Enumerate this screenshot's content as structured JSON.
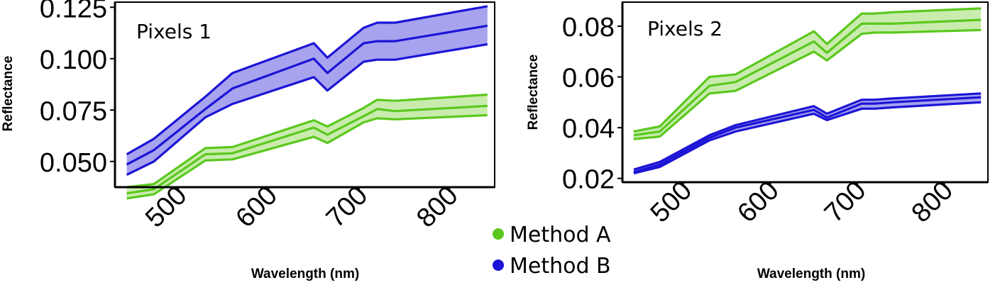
{
  "colors": {
    "method_a_line": "#5bc81e",
    "method_a_fill": "#c9ecae",
    "method_b_line": "#1c14d6",
    "method_b_fill": "#a7a3ee"
  },
  "legend": [
    {
      "label": "Method A",
      "color": "#5bc81e"
    },
    {
      "label": "Method B",
      "color": "#1c14d6"
    }
  ],
  "chart_data": [
    {
      "type": "line",
      "panel_label": "Pixels 1",
      "xlabel": "Wavelength (nm)",
      "ylabel": "Reflectance",
      "xlim": [
        430,
        850
      ],
      "ylim": [
        0.0375,
        0.1275
      ],
      "xticks": [
        500,
        600,
        700,
        800
      ],
      "yticks": [
        0.05,
        0.075,
        0.1,
        0.125
      ],
      "ytick_labels": [
        "0.050",
        "0.075",
        "0.100",
        "0.125"
      ],
      "x": [
        443,
        473,
        530,
        560,
        650,
        665,
        705,
        720,
        740,
        842
      ],
      "series": [
        {
          "name": "Method A",
          "mean": [
            0.0345,
            0.0365,
            0.0535,
            0.054,
            0.0665,
            0.063,
            0.072,
            0.0755,
            0.0745,
            0.077
          ],
          "lower": [
            0.032,
            0.034,
            0.0505,
            0.051,
            0.062,
            0.059,
            0.069,
            0.071,
            0.0705,
            0.0725
          ],
          "upper": [
            0.0375,
            0.039,
            0.0565,
            0.057,
            0.07,
            0.067,
            0.076,
            0.08,
            0.0795,
            0.0825
          ]
        },
        {
          "name": "Method B",
          "mean": [
            0.0485,
            0.0555,
            0.0755,
            0.0855,
            0.1,
            0.093,
            0.1075,
            0.1085,
            0.1085,
            0.116
          ],
          "lower": [
            0.0435,
            0.05,
            0.0715,
            0.078,
            0.091,
            0.0845,
            0.0985,
            0.0995,
            0.0995,
            0.107
          ],
          "upper": [
            0.0535,
            0.061,
            0.0815,
            0.093,
            0.1075,
            0.1005,
            0.115,
            0.1175,
            0.1175,
            0.1255
          ]
        }
      ]
    },
    {
      "type": "line",
      "panel_label": "Pixels 2",
      "xlabel": "Wavelength (nm)",
      "ylabel": "Reflectance",
      "xlim": [
        430,
        850
      ],
      "ylim": [
        0.0185,
        0.0895
      ],
      "xticks": [
        500,
        600,
        700,
        800
      ],
      "yticks": [
        0.02,
        0.04,
        0.06,
        0.08
      ],
      "ytick_labels": [
        "0.02",
        "0.04",
        "0.06",
        "0.08"
      ],
      "x": [
        443,
        473,
        530,
        560,
        650,
        665,
        705,
        720,
        740,
        842
      ],
      "series": [
        {
          "name": "Method A",
          "mean": [
            0.037,
            0.0385,
            0.0565,
            0.058,
            0.074,
            0.0695,
            0.081,
            0.081,
            0.081,
            0.0825
          ],
          "lower": [
            0.0355,
            0.0365,
            0.0535,
            0.0545,
            0.07,
            0.0665,
            0.077,
            0.0775,
            0.0775,
            0.0785
          ],
          "upper": [
            0.0385,
            0.0405,
            0.06,
            0.061,
            0.078,
            0.073,
            0.085,
            0.085,
            0.0855,
            0.087
          ]
        },
        {
          "name": "Method B",
          "mean": [
            0.0225,
            0.0255,
            0.036,
            0.04,
            0.047,
            0.044,
            0.0495,
            0.0495,
            0.05,
            0.052
          ],
          "lower": [
            0.022,
            0.0245,
            0.035,
            0.0385,
            0.0455,
            0.043,
            0.0475,
            0.0475,
            0.048,
            0.05
          ],
          "upper": [
            0.0235,
            0.0265,
            0.037,
            0.041,
            0.0485,
            0.0455,
            0.051,
            0.051,
            0.0515,
            0.0535
          ]
        }
      ]
    }
  ]
}
